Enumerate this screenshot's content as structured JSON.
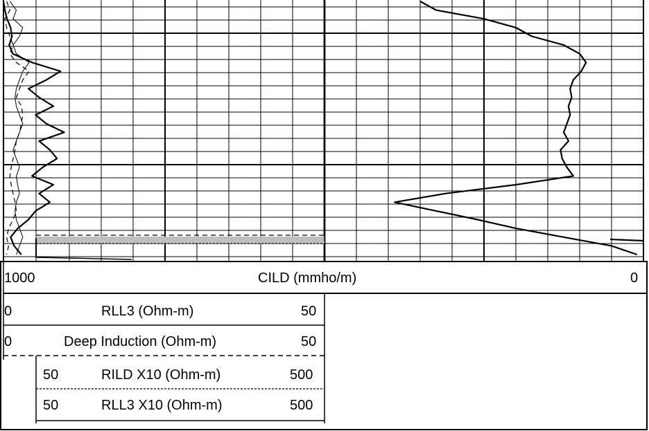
{
  "chart_data": {
    "type": "line",
    "title": "",
    "depth_axis": "vertical",
    "tracks": [
      {
        "track": "left",
        "grid": true,
        "scale": "linear",
        "curves": [
          {
            "label": "RLL3 (Ohm-m)",
            "scale_min": 0,
            "scale_max": 50,
            "style": "solid-thin",
            "values": [
              1.0,
              2.0,
              1.5,
              3.0,
              2.5,
              1.5,
              2.0,
              4.0,
              3.0,
              2.5,
              2.0,
              1.8,
              2.0,
              2.5,
              3.0,
              2.5,
              2.0,
              1.5,
              2.0,
              2.5,
              2.0,
              2.2,
              2.5,
              2.0,
              1.8,
              2.0,
              2.5,
              3.0,
              2.5,
              2.0
            ]
          },
          {
            "label": "Deep Induction (Ohm-m)",
            "scale_min": 0,
            "scale_max": 50,
            "style": "dashed",
            "values": [
              0.5,
              1.0,
              0.2,
              0.5,
              1.0,
              1.5,
              1.0,
              2.0,
              4.0,
              3.0,
              2.5,
              2.0,
              2.8,
              3.0,
              2.8,
              2.5,
              2.0,
              1.8,
              1.5,
              1.2,
              1.0,
              1.2,
              1.5,
              1.8,
              2.0,
              1.5,
              0.8,
              0.5,
              0.8,
              0.5
            ]
          },
          {
            "label": "RILD X10 (Ohm-m)",
            "scale_min": 50,
            "scale_max": 500,
            "style": "dashed-fine",
            "values": [
              null,
              null,
              null,
              null,
              null,
              null,
              null,
              null,
              null,
              null,
              null,
              null,
              null,
              null,
              null,
              null,
              null,
              null,
              null,
              null,
              null,
              null,
              null,
              null,
              null,
              null,
              null,
              500,
              500,
              500
            ]
          },
          {
            "label": "RLL3 X10 (Ohm-m)",
            "scale_min": 50,
            "scale_max": 500,
            "style": "solid-thick",
            "values": [
              50,
              52,
              55,
              60,
              62,
              58,
              63,
              90,
              130,
              110,
              85,
              100,
              120,
              95,
              110,
              135,
              100,
              115,
              125,
              105,
              90,
              120,
              100,
              115,
              95,
              85,
              70,
              60,
              65,
              75
            ]
          }
        ]
      },
      {
        "track": "right",
        "grid": true,
        "scale": "linear",
        "curves": [
          {
            "label": "CILD (mmho/m)",
            "scale_min": 1000,
            "scale_max": 0,
            "style": "solid-thick",
            "values": [
              700,
              650,
              500,
              400,
              350,
              250,
              200,
              180,
              195,
              220,
              230,
              225,
              235,
              230,
              240,
              250,
              235,
              260,
              255,
              240,
              220,
              400,
              620,
              780,
              650,
              520,
              400,
              250,
              100,
              20
            ]
          }
        ]
      }
    ]
  },
  "scales": {
    "cild": {
      "min": "1000",
      "name": "CILD (mmho/m)",
      "max": "0"
    },
    "rll3": {
      "min": "0",
      "name": "RLL3 (Ohm-m)",
      "max": "50"
    },
    "deep": {
      "min": "0",
      "name": "Deep Induction (Ohm-m)",
      "max": "50"
    },
    "rild10": {
      "min": "50",
      "name": "RILD X10 (Ohm-m)",
      "max": "500"
    },
    "rll310": {
      "min": "50",
      "name": "RLL3 X10 (Ohm-m)",
      "max": "500"
    }
  },
  "colors": {
    "line": "#000000",
    "grid": "#000000",
    "fill": "#bfbfbf",
    "background": "#ffffff"
  }
}
